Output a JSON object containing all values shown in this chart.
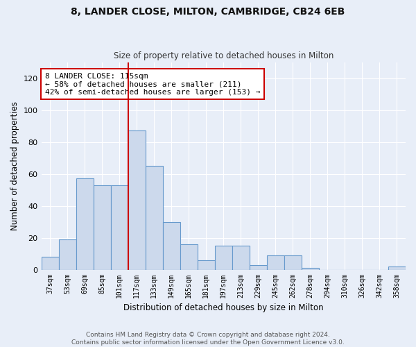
{
  "title": "8, LANDER CLOSE, MILTON, CAMBRIDGE, CB24 6EB",
  "subtitle": "Size of property relative to detached houses in Milton",
  "xlabel": "Distribution of detached houses by size in Milton",
  "ylabel": "Number of detached properties",
  "bar_color": "#ccd9ec",
  "bar_edge_color": "#6699cc",
  "background_color": "#e8eef8",
  "grid_color": "#ffffff",
  "categories": [
    "37sqm",
    "53sqm",
    "69sqm",
    "85sqm",
    "101sqm",
    "117sqm",
    "133sqm",
    "149sqm",
    "165sqm",
    "181sqm",
    "197sqm",
    "213sqm",
    "229sqm",
    "245sqm",
    "262sqm",
    "278sqm",
    "294sqm",
    "310sqm",
    "326sqm",
    "342sqm",
    "358sqm"
  ],
  "values": [
    8,
    19,
    57,
    53,
    53,
    87,
    65,
    30,
    16,
    6,
    15,
    15,
    3,
    9,
    9,
    1,
    0,
    0,
    0,
    0,
    2
  ],
  "ylim": [
    0,
    130
  ],
  "yticks": [
    0,
    20,
    40,
    60,
    80,
    100,
    120
  ],
  "property_line_label": "8 LANDER CLOSE: 115sqm",
  "annotation_line1": "← 58% of detached houses are smaller (211)",
  "annotation_line2": "42% of semi-detached houses are larger (153) →",
  "annotation_box_color": "#ffffff",
  "annotation_box_edge_color": "#cc0000",
  "footer_text": "Contains HM Land Registry data © Crown copyright and database right 2024.\nContains public sector information licensed under the Open Government Licence v3.0.",
  "vline_color": "#cc0000",
  "vline_x_index": 5
}
